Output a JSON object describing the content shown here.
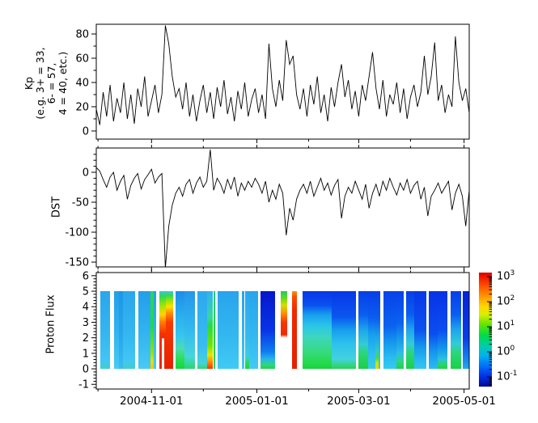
{
  "figure": {
    "background": "#ffffff",
    "frame_color": "#000000",
    "line_color": "#000000"
  },
  "xaxis": {
    "total_days": 216,
    "major_ticks": [
      {
        "day": 32,
        "label": "2004-11-01"
      },
      {
        "day": 93,
        "label": "2005-01-01"
      },
      {
        "day": 152,
        "label": "2005-03-01"
      },
      {
        "day": 213,
        "label": "2005-05-01"
      }
    ],
    "minor_days": [
      1,
      62,
      123,
      182
    ]
  },
  "chart_data": [
    {
      "id": "kp",
      "type": "line",
      "panel": "top",
      "ylabel_lines": [
        "Kp",
        "(e.g. 3+ = 33,",
        "6- = 57,",
        "4 = 40, etc.)"
      ],
      "ylim": [
        -6.7,
        88
      ],
      "yticks_major": [
        0,
        20,
        40,
        60,
        80
      ],
      "yticks_minor": [
        10,
        30,
        50,
        70
      ],
      "sample_days": 2,
      "values": [
        18,
        5,
        32,
        12,
        38,
        8,
        27,
        15,
        40,
        10,
        30,
        6,
        35,
        20,
        45,
        12,
        25,
        38,
        15,
        30,
        87,
        72,
        45,
        28,
        35,
        18,
        40,
        12,
        30,
        8,
        25,
        38,
        15,
        32,
        10,
        36,
        20,
        42,
        14,
        28,
        8,
        33,
        18,
        40,
        12,
        26,
        35,
        15,
        30,
        10,
        72,
        35,
        20,
        42,
        25,
        75,
        55,
        62,
        30,
        18,
        35,
        12,
        38,
        22,
        45,
        15,
        30,
        8,
        36,
        20,
        40,
        55,
        28,
        42,
        18,
        33,
        12,
        38,
        25,
        45,
        65,
        35,
        18,
        42,
        12,
        30,
        22,
        40,
        15,
        35,
        10,
        28,
        38,
        20,
        32,
        62,
        30,
        45,
        73,
        25,
        38,
        15,
        30,
        20,
        78,
        40,
        25,
        35,
        15,
        42
      ]
    },
    {
      "id": "dst",
      "type": "line",
      "panel": "middle",
      "ylabel": "DST",
      "ylim": [
        -158,
        40.5
      ],
      "yticks_major": [
        0,
        -50,
        -100,
        -150
      ],
      "yticks_minor": [
        30,
        20,
        10,
        -10,
        -20,
        -30,
        -40,
        -60,
        -70,
        -80,
        -90,
        -110,
        -120,
        -130,
        -140
      ],
      "sample_days": 2,
      "values": [
        8,
        2,
        -12,
        -25,
        -8,
        0,
        -30,
        -15,
        -5,
        -45,
        -22,
        -10,
        -2,
        -28,
        -12,
        -4,
        5,
        -18,
        -8,
        -2,
        -160,
        -90,
        -55,
        -35,
        -25,
        -40,
        -20,
        -12,
        -35,
        -18,
        -8,
        -25,
        -15,
        38,
        -30,
        -10,
        -20,
        -35,
        -12,
        -28,
        -8,
        -40,
        -18,
        -30,
        -15,
        -25,
        -10,
        -20,
        -35,
        -15,
        -50,
        -30,
        -45,
        -20,
        -35,
        -105,
        -60,
        -80,
        -45,
        -30,
        -20,
        -35,
        -15,
        -40,
        -25,
        -10,
        -30,
        -18,
        -38,
        -22,
        -12,
        -77,
        -40,
        -25,
        -35,
        -15,
        -30,
        -45,
        -20,
        -60,
        -35,
        -20,
        -40,
        -15,
        -30,
        -10,
        -25,
        -38,
        -18,
        -30,
        -12,
        -35,
        -22,
        -15,
        -45,
        -25,
        -73,
        -40,
        -30,
        -18,
        -35,
        -25,
        -15,
        -63,
        -35,
        -20,
        -40,
        -90,
        -30,
        -18
      ]
    },
    {
      "id": "flux",
      "type": "heatmap",
      "panel": "bottom",
      "ylabel": "Proton Flux",
      "ylim": [
        -1.3,
        6.2
      ],
      "yticks_major": [
        -1,
        0,
        1,
        2,
        3,
        4,
        5,
        6
      ],
      "yminor_step": 0.2,
      "band_y": [
        0,
        5
      ],
      "value_scale": "log10, 10^-1 .. 10^3",
      "gradients": {
        "cyanA": [
          [
            0,
            "#2aa6ec"
          ],
          [
            0.55,
            "#34b6f0"
          ],
          [
            0.9,
            "#42c6f4"
          ],
          [
            1,
            "#3ed0c8"
          ]
        ],
        "cyanB": [
          [
            0,
            "#249eea"
          ],
          [
            0.5,
            "#30b2f0"
          ],
          [
            1,
            "#48caf4"
          ]
        ],
        "cyanDark": [
          [
            0,
            "#1e96e6"
          ],
          [
            0.6,
            "#28a8ec"
          ],
          [
            1,
            "#38bcf0"
          ]
        ],
        "greenCol": [
          [
            0,
            "#2cd45c"
          ],
          [
            0.45,
            "#1edc3e"
          ],
          [
            0.78,
            "#8ce400"
          ],
          [
            0.9,
            "#e6de00"
          ],
          [
            1,
            "#ffc400"
          ]
        ],
        "stormGrad": [
          [
            0,
            "#36c8e0"
          ],
          [
            0.07,
            "#2eda4e"
          ],
          [
            0.2,
            "#aae600"
          ],
          [
            0.3,
            "#ffd400"
          ],
          [
            0.4,
            "#ff7c00"
          ],
          [
            0.55,
            "#f63000"
          ],
          [
            1,
            "#e82400"
          ]
        ],
        "stormGradW": [
          [
            0,
            "#36c8e0"
          ],
          [
            0.07,
            "#2eda4e"
          ],
          [
            0.2,
            "#aae600"
          ],
          [
            0.3,
            "#ffd400"
          ],
          [
            0.4,
            "#ff7c00"
          ],
          [
            0.55,
            "#f63000"
          ],
          [
            0.6,
            "#f02c00"
          ],
          [
            0.615,
            "#ffffff"
          ],
          [
            1,
            "#ffffff"
          ]
        ],
        "redCol": [
          [
            0,
            "#38c8e8"
          ],
          [
            0.05,
            "#2ed858"
          ],
          [
            0.13,
            "#a4e600"
          ],
          [
            0.2,
            "#ffe000"
          ],
          [
            0.28,
            "#ff8c00"
          ],
          [
            0.4,
            "#f83a00"
          ],
          [
            1,
            "#e62000"
          ]
        ],
        "decayA": [
          [
            0,
            "#1e8ce8"
          ],
          [
            0.3,
            "#2aacee"
          ],
          [
            0.58,
            "#38c6f0"
          ],
          [
            0.74,
            "#4cdcae"
          ],
          [
            0.86,
            "#2ede5e"
          ],
          [
            1,
            "#12d838"
          ]
        ],
        "decayB": [
          [
            0,
            "#2496ea"
          ],
          [
            0.5,
            "#32b8f0"
          ],
          [
            0.84,
            "#46d6dc"
          ],
          [
            1,
            "#2ad66e"
          ]
        ],
        "cyanC": [
          [
            0,
            "#2ca8ee"
          ],
          [
            0.7,
            "#38bcf2"
          ],
          [
            0.93,
            "#44d2da"
          ],
          [
            1,
            "#30d466"
          ]
        ],
        "decEvent": [
          [
            0,
            "#30b2ee"
          ],
          [
            0.33,
            "#36d6a4"
          ],
          [
            0.45,
            "#26da46"
          ],
          [
            0.7,
            "#72e600"
          ],
          [
            0.82,
            "#e6e600"
          ],
          [
            0.9,
            "#ff9400"
          ],
          [
            1,
            "#f03400"
          ]
        ],
        "thinGreen": [
          [
            0,
            "#28c878"
          ],
          [
            0.5,
            "#1ed244"
          ],
          [
            1,
            "#28d45c"
          ]
        ],
        "cyanD": [
          [
            0,
            "#28a4ec"
          ],
          [
            0.6,
            "#34b8f0"
          ],
          [
            1,
            "#40caf4"
          ]
        ],
        "greenBump": [
          [
            0,
            "#2aa8ee"
          ],
          [
            0.6,
            "#36baf0"
          ],
          [
            0.84,
            "#3ecce0"
          ],
          [
            0.92,
            "#2ad860"
          ],
          [
            1,
            "#1cd244"
          ]
        ],
        "deepBlue": [
          [
            0,
            "#0616cc"
          ],
          [
            0.5,
            "#0734e6"
          ],
          [
            0.78,
            "#0e7cf0"
          ],
          [
            0.87,
            "#26b4ec"
          ],
          [
            0.95,
            "#2ed67e"
          ],
          [
            1,
            "#1ed24e"
          ]
        ],
        "eventLeft": [
          [
            0,
            "#2ac65e"
          ],
          [
            0.09,
            "#64da1e"
          ],
          [
            0.18,
            "#d6de00"
          ],
          [
            0.28,
            "#ff9400"
          ],
          [
            0.4,
            "#f83600"
          ],
          [
            0.56,
            "#f02800"
          ],
          [
            0.6,
            "#ffffff"
          ],
          [
            1,
            "#ffffff"
          ]
        ],
        "redCol2": [
          [
            0,
            "#ff9600"
          ],
          [
            0.07,
            "#fa4c00"
          ],
          [
            0.25,
            "#f22800"
          ],
          [
            1,
            "#e62000"
          ]
        ],
        "postA": [
          [
            0,
            "#0836e8"
          ],
          [
            0.18,
            "#0a50f0"
          ],
          [
            0.3,
            "#169eee"
          ],
          [
            0.45,
            "#2cc6e8"
          ],
          [
            0.6,
            "#3ed6bc"
          ],
          [
            0.78,
            "#36da7e"
          ],
          [
            0.92,
            "#26da4e"
          ],
          [
            1,
            "#16d43e"
          ]
        ],
        "postB": [
          [
            0,
            "#0836e8"
          ],
          [
            0.33,
            "#0a56f0"
          ],
          [
            0.5,
            "#169eee"
          ],
          [
            0.68,
            "#2ec2ec"
          ],
          [
            0.88,
            "#42d2de"
          ],
          [
            0.97,
            "#2ed46e"
          ],
          [
            1,
            "#22d252"
          ]
        ],
        "blueGreenL": [
          [
            0,
            "#083ee8"
          ],
          [
            0.3,
            "#0a5ef0"
          ],
          [
            0.5,
            "#1ea6ec"
          ],
          [
            0.68,
            "#32ccd6"
          ],
          [
            0.8,
            "#2ad676"
          ],
          [
            1,
            "#1ad046"
          ]
        ],
        "blueCyan": [
          [
            0,
            "#083ee8"
          ],
          [
            0.35,
            "#0a5ef0"
          ],
          [
            0.55,
            "#169eee"
          ],
          [
            0.8,
            "#2cbcf0"
          ],
          [
            1,
            "#38cce8"
          ]
        ],
        "yellowSpot": [
          [
            0,
            "#083ee8"
          ],
          [
            0.35,
            "#0a5ef0"
          ],
          [
            0.6,
            "#1ea6ec"
          ],
          [
            0.76,
            "#2ecabe"
          ],
          [
            0.86,
            "#42da4e"
          ],
          [
            0.92,
            "#c4e600"
          ],
          [
            1,
            "#eed400"
          ]
        ],
        "blueCyan2": [
          [
            0,
            "#0842ea"
          ],
          [
            0.45,
            "#0a62f0"
          ],
          [
            0.65,
            "#1496ec"
          ],
          [
            0.85,
            "#2abaf0"
          ],
          [
            1,
            "#34caf0"
          ]
        ],
        "blueGreenR": [
          [
            0,
            "#0842ea"
          ],
          [
            0.4,
            "#0a62f0"
          ],
          [
            0.6,
            "#1496ec"
          ],
          [
            0.8,
            "#2ebee6"
          ],
          [
            0.9,
            "#2cd684"
          ],
          [
            1,
            "#1ed050"
          ]
        ],
        "blueCyan3": [
          [
            0,
            "#0836e8"
          ],
          [
            0.5,
            "#0a52f0"
          ],
          [
            0.72,
            "#1498ec"
          ],
          [
            0.9,
            "#2abaf0"
          ],
          [
            1,
            "#32c6f0"
          ]
        ],
        "blue4": [
          [
            0,
            "#0832e6"
          ],
          [
            0.55,
            "#0a4ef0"
          ],
          [
            0.78,
            "#1496ec"
          ],
          [
            1,
            "#2cbcf0"
          ]
        ],
        "blueGreenStrip": [
          [
            0,
            "#0832e6"
          ],
          [
            0.5,
            "#0a4ef0"
          ],
          [
            0.74,
            "#1496ec"
          ],
          [
            0.88,
            "#2ec2de"
          ],
          [
            0.94,
            "#2ad46c"
          ],
          [
            1,
            "#1ed04c"
          ]
        ],
        "deepBlueEnd": [
          [
            0,
            "#0522d8"
          ],
          [
            0.6,
            "#073cec"
          ],
          [
            0.85,
            "#1280f0"
          ],
          [
            1,
            "#24aaee"
          ]
        ]
      },
      "segments": [
        {
          "d0": 2.3,
          "d1": 8.0,
          "grad": "cyanA"
        },
        {
          "d0": 10.3,
          "d1": 13.0,
          "grad": "cyanB"
        },
        {
          "d0": 13.0,
          "d1": 15.5,
          "grad": "cyanDark"
        },
        {
          "d0": 15.5,
          "d1": 22.5,
          "grad": "cyanA"
        },
        {
          "d0": 24.4,
          "d1": 31.4,
          "grad": "cyanB"
        },
        {
          "d0": 31.4,
          "d1": 33.3,
          "grad": "greenCol"
        },
        {
          "d0": 33.3,
          "d1": 34.7,
          "grad": "cyanB"
        },
        {
          "d0": 36.6,
          "d1": 38.0,
          "grad": "stormGrad"
        },
        {
          "d0": 38.0,
          "d1": 39.4,
          "grad": "stormGradW"
        },
        {
          "d0": 39.4,
          "d1": 40.3,
          "grad": "stormGrad"
        },
        {
          "d0": 40.3,
          "d1": 44.5,
          "grad": "redCol"
        },
        {
          "d0": 45.9,
          "d1": 51.1,
          "grad": "decayA"
        },
        {
          "d0": 51.1,
          "d1": 57.2,
          "grad": "decayB"
        },
        {
          "d0": 58.6,
          "d1": 64.2,
          "grad": "cyanC"
        },
        {
          "d0": 64.2,
          "d1": 67.5,
          "grad": "decEvent"
        },
        {
          "d0": 68.0,
          "d1": 68.9,
          "grad": "thinGreen"
        },
        {
          "d0": 70.3,
          "d1": 82.5,
          "grad": "cyanD"
        },
        {
          "d0": 84.4,
          "d1": 86.0,
          "grad": "cyanD"
        },
        {
          "d0": 86.0,
          "d1": 88.6,
          "grad": "greenBump"
        },
        {
          "d0": 88.6,
          "d1": 93.7,
          "grad": "cyanD"
        },
        {
          "d0": 95.1,
          "d1": 103.6,
          "grad": "deepBlue"
        },
        {
          "d0": 106.8,
          "d1": 110.6,
          "grad": "eventLeft"
        },
        {
          "d0": 113.4,
          "d1": 116.2,
          "grad": "redCol2"
        },
        {
          "d0": 119.5,
          "d1": 136.4,
          "grad": "postA"
        },
        {
          "d0": 136.4,
          "d1": 150.4,
          "grad": "postB"
        },
        {
          "d0": 151.8,
          "d1": 157.5,
          "grad": "blueGreenL"
        },
        {
          "d0": 157.5,
          "d1": 161.7,
          "grad": "blueCyan"
        },
        {
          "d0": 161.7,
          "d1": 163.6,
          "grad": "yellowSpot"
        },
        {
          "d0": 163.6,
          "d1": 164.5,
          "grad": "blueCyan"
        },
        {
          "d0": 166.4,
          "d1": 173.9,
          "grad": "blueCyan2"
        },
        {
          "d0": 173.9,
          "d1": 178.1,
          "grad": "blueGreenR"
        },
        {
          "d0": 179.5,
          "d1": 184.2,
          "grad": "blueGreenL"
        },
        {
          "d0": 184.2,
          "d1": 191.2,
          "grad": "blueCyan3"
        },
        {
          "d0": 192.6,
          "d1": 197.8,
          "grad": "blue4"
        },
        {
          "d0": 197.8,
          "d1": 203.4,
          "grad": "blueGreenStrip"
        },
        {
          "d0": 205.3,
          "d1": 211.4,
          "grad": "blueGreenL"
        },
        {
          "d0": 212.3,
          "d1": 216.0,
          "grad": "deepBlueEnd"
        }
      ]
    }
  ],
  "colorbar": {
    "base": "10",
    "exponents": [
      "3",
      "2",
      "1",
      "0",
      "-1"
    ],
    "gradient_stops": [
      [
        0,
        "#d40000"
      ],
      [
        0.03,
        "#ee1000"
      ],
      [
        0.1,
        "#ff4400"
      ],
      [
        0.2,
        "#ff9000"
      ],
      [
        0.3,
        "#ffd800"
      ],
      [
        0.37,
        "#d8ee00"
      ],
      [
        0.45,
        "#66e400"
      ],
      [
        0.55,
        "#00dc48"
      ],
      [
        0.65,
        "#00ccb0"
      ],
      [
        0.73,
        "#00b0ee"
      ],
      [
        0.82,
        "#0070f8"
      ],
      [
        0.91,
        "#0030e8"
      ],
      [
        1,
        "#000890"
      ]
    ]
  }
}
